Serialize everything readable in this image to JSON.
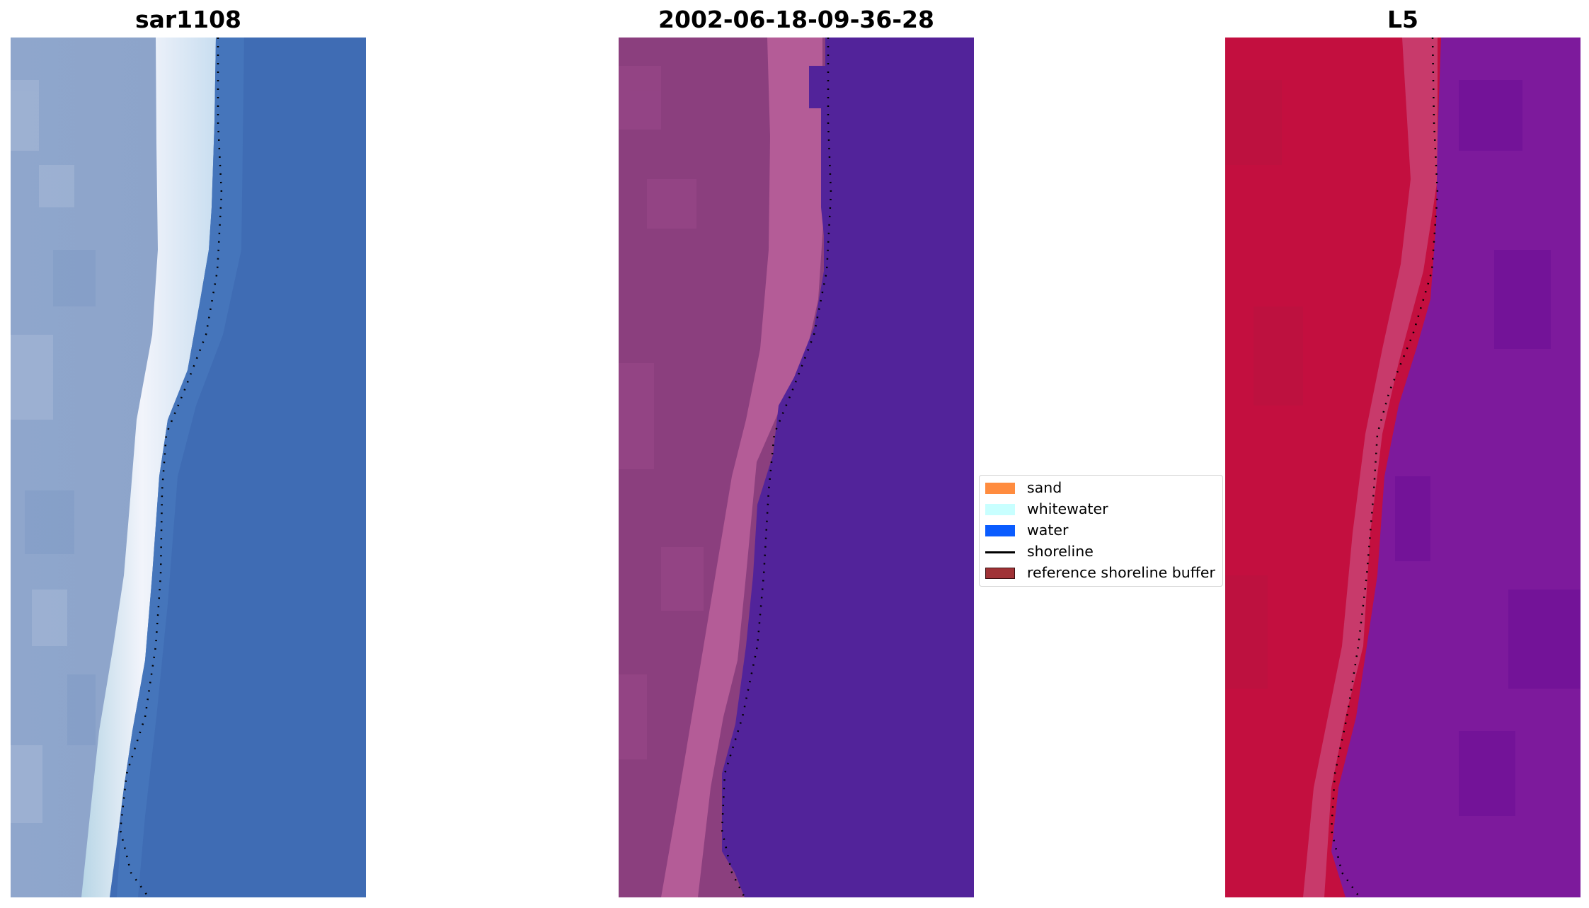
{
  "panels": [
    {
      "title": "sar1108"
    },
    {
      "title": "2002-06-18-09-36-28"
    },
    {
      "title": "L5"
    }
  ],
  "legend": {
    "items": [
      {
        "label": "sand",
        "kind": "patch",
        "color": "#ff8c3f"
      },
      {
        "label": "whitewater",
        "kind": "patch",
        "color": "#c8ffff"
      },
      {
        "label": "water",
        "kind": "patch",
        "color": "#0a5cff"
      },
      {
        "label": "shoreline",
        "kind": "line",
        "color": "#000000"
      },
      {
        "label": "reference shoreline buffer",
        "kind": "patch",
        "color": "#a03236"
      }
    ]
  }
}
